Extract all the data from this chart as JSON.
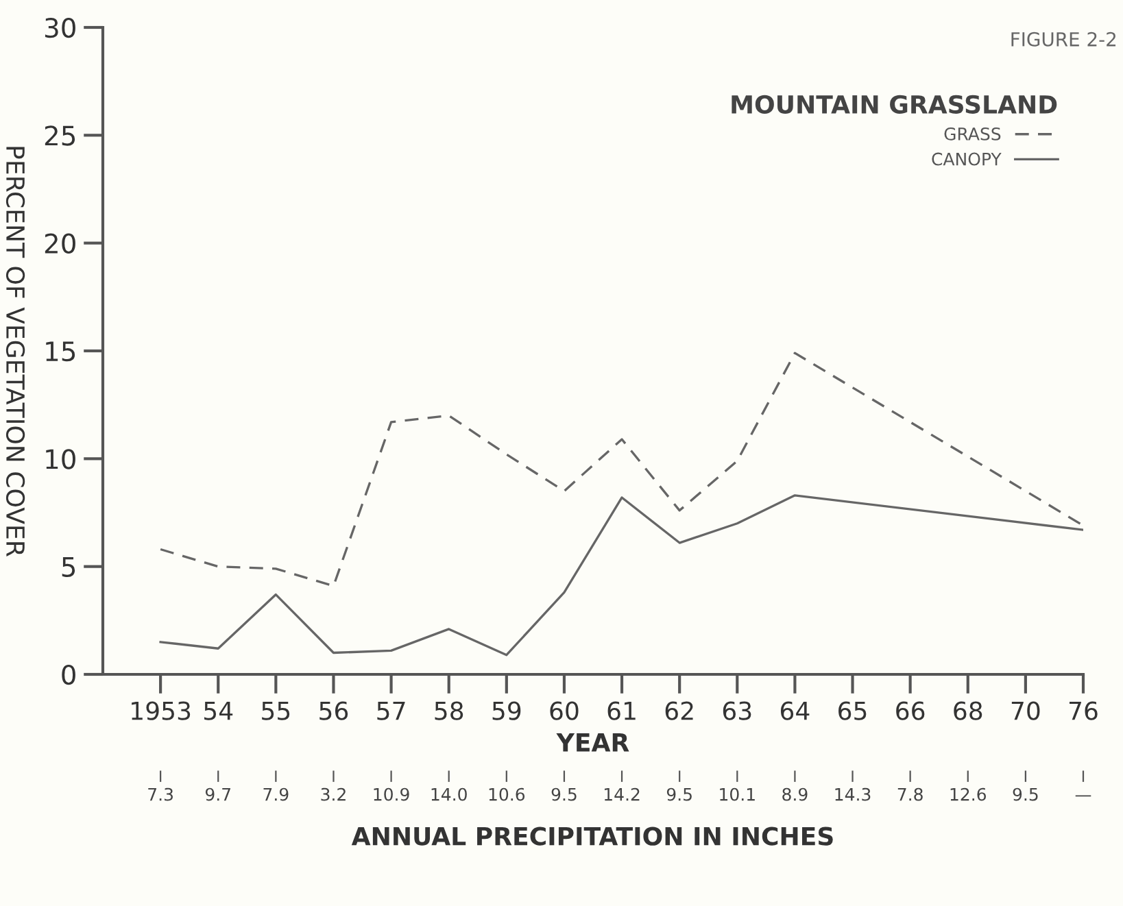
{
  "chart_data": {
    "type": "line",
    "categories": [
      "1953",
      "54",
      "55",
      "56",
      "57",
      "58",
      "59",
      "60",
      "61",
      "62",
      "63",
      "64",
      "65",
      "66",
      "68",
      "70",
      "76"
    ],
    "series": [
      {
        "name": "GRASS",
        "color": "#666666",
        "line_style": "dashed",
        "values": [
          5.8,
          5.0,
          4.9,
          4.1,
          11.7,
          12.0,
          10.2,
          8.5,
          10.9,
          7.6,
          9.9,
          14.9,
          null,
          null,
          null,
          null,
          6.9
        ]
      },
      {
        "name": "CANOPY",
        "color": "#666666",
        "line_style": "solid",
        "values": [
          1.5,
          1.2,
          3.7,
          1.0,
          1.1,
          2.1,
          0.9,
          3.8,
          8.2,
          6.1,
          7.0,
          8.3,
          null,
          null,
          null,
          null,
          6.7
        ]
      }
    ],
    "xlabel": "YEAR",
    "ylabel": "PERCENT OF VEGETATION COVER",
    "ylim": [
      0,
      30
    ],
    "yticks": [
      0,
      5,
      10,
      15,
      20,
      25,
      30
    ],
    "legend": "top right",
    "legend_title": "MOUNTAIN GRASSLAND",
    "annotations": [
      "FIGURE 2-2",
      "7.3",
      "9.7",
      "7.9",
      "3.2",
      "10.9",
      "14.0",
      "10.6",
      "9.5",
      "14.2",
      "9.5",
      "10.1",
      "8.9",
      "14.3",
      "7.8",
      "12.6",
      "9.5",
      "—",
      "ANNUAL PRECIPITATION IN INCHES"
    ],
    "grid": false,
    "marker": "none"
  }
}
